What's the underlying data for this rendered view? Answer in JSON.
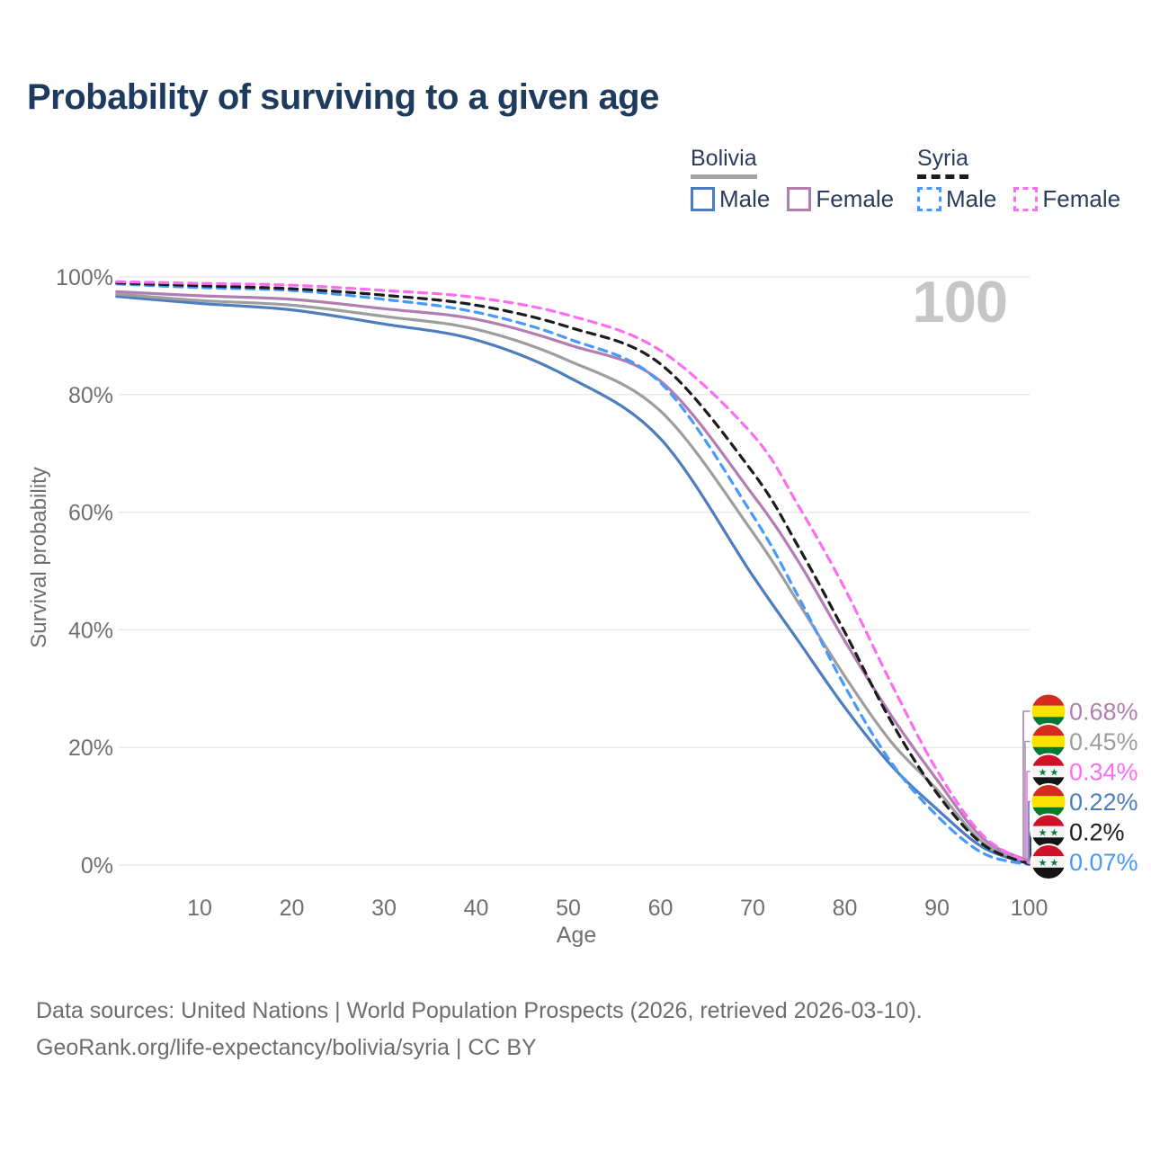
{
  "title": "Probability of surviving to a given age",
  "watermark_age": "100",
  "legend": {
    "groups": [
      {
        "name": "Bolivia",
        "line_style": "solid",
        "underline_color": "#a3a3a3",
        "items": [
          {
            "label": "Male",
            "color": "#4e7dbf",
            "dashed": false
          },
          {
            "label": "Female",
            "color": "#b27eb2",
            "dashed": false
          }
        ]
      },
      {
        "name": "Syria",
        "line_style": "dashed",
        "underline_color": "#1c1c1c",
        "items": [
          {
            "label": "Male",
            "color": "#4899fb",
            "dashed": true
          },
          {
            "label": "Female",
            "color": "#fb6ef1",
            "dashed": true
          }
        ]
      }
    ]
  },
  "chart_data": {
    "type": "line",
    "title": "Probability of surviving to a given age",
    "xlabel": "Age",
    "ylabel": "Survival probability",
    "xlim": [
      1,
      100
    ],
    "ylim": [
      0,
      100
    ],
    "grid": "horizontal",
    "legend_position": "top-right",
    "x_ticks": [
      10,
      20,
      30,
      40,
      50,
      60,
      70,
      80,
      90,
      100
    ],
    "y_ticks": [
      0,
      20,
      40,
      60,
      80,
      100
    ],
    "y_tick_suffix": "%",
    "x": [
      1,
      10,
      20,
      30,
      40,
      50,
      60,
      70,
      75,
      80,
      85,
      90,
      95,
      100
    ],
    "series": [
      {
        "name": "Bolivia Male",
        "country": "bolivia",
        "sex": "male",
        "color": "#4e7dbf",
        "dashed": false,
        "end_label": "0.22%",
        "values": [
          96.7,
          95.5,
          94.4,
          92.0,
          89.3,
          83.0,
          72.5,
          49.2,
          38.0,
          26.8,
          17.0,
          9.5,
          3.0,
          0.22
        ]
      },
      {
        "name": "Bolivia Female",
        "country": "bolivia",
        "sex": "female",
        "color": "#b27eb2",
        "dashed": false,
        "end_label": "0.68%",
        "values": [
          97.5,
          96.8,
          96.2,
          94.6,
          92.8,
          88.5,
          82.3,
          63.0,
          51.5,
          38.1,
          25.5,
          14.5,
          4.5,
          0.68
        ]
      },
      {
        "name": "Bolivia",
        "country": "bolivia",
        "sex": "both",
        "color": "#9e9e9e",
        "dashed": false,
        "end_label": "0.45%",
        "values": [
          97.1,
          96.0,
          95.2,
          93.3,
          91.1,
          85.8,
          77.2,
          56.6,
          44.5,
          32.1,
          21.0,
          12.8,
          3.8,
          0.45
        ]
      },
      {
        "name": "Syria Male",
        "country": "syria",
        "sex": "male",
        "color": "#4899fb",
        "dashed": true,
        "end_label": "0.07%",
        "values": [
          98.8,
          98.2,
          97.7,
          96.2,
          94.0,
          89.5,
          82.0,
          59.5,
          45.5,
          30.4,
          17.5,
          8.4,
          2.0,
          0.07
        ]
      },
      {
        "name": "Syria",
        "country": "syria",
        "sex": "both",
        "color": "#1c1c1c",
        "dashed": true,
        "end_label": "0.2%",
        "values": [
          99.0,
          98.5,
          98.0,
          96.9,
          95.2,
          91.5,
          85.2,
          66.8,
          54.0,
          39.6,
          24.5,
          12.2,
          3.5,
          0.2
        ]
      },
      {
        "name": "Syria Female",
        "country": "syria",
        "sex": "female",
        "color": "#fb6ef1",
        "dashed": true,
        "end_label": "0.34%",
        "values": [
          99.2,
          98.9,
          98.6,
          97.7,
          96.5,
          93.5,
          87.5,
          73.2,
          61.0,
          47.0,
          31.0,
          16.1,
          5.0,
          0.34
        ]
      }
    ],
    "end_label_order": [
      "Bolivia Female",
      "Bolivia",
      "Syria Female",
      "Bolivia Male",
      "Syria",
      "Syria Male"
    ]
  },
  "flags": {
    "bolivia_colors": [
      "#d52b1e",
      "#f9e300",
      "#007934"
    ],
    "syria_colors": [
      "#ce1126",
      "#f5f5f5",
      "#141414"
    ],
    "syria_star_color": "#007a3d",
    "syria_stars": "★ ★"
  },
  "footer": {
    "line1": "Data sources: United Nations | World Population Prospects (2026, retrieved 2026-03-10).",
    "line2": "GeoRank.org/life-expectancy/bolivia/syria | CC BY"
  }
}
